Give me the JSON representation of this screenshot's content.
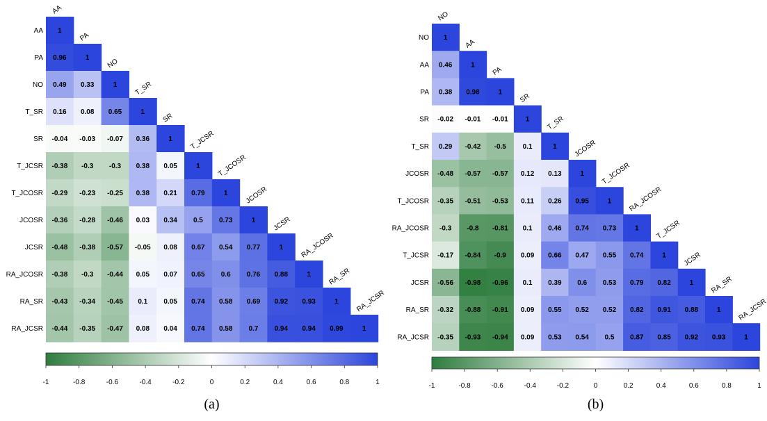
{
  "chart_data": [
    {
      "type": "heatmap",
      "caption": "(a)",
      "variables": [
        "AA",
        "PA",
        "NO",
        "T_SR",
        "SR",
        "T_JCSR",
        "T_JCOSR",
        "JCOSR",
        "JCSR",
        "RA_JCOSR",
        "RA_SR",
        "RA_JCSR"
      ],
      "lower_triangle": [
        [
          1
        ],
        [
          0.96,
          1
        ],
        [
          0.49,
          0.33,
          1
        ],
        [
          0.16,
          0.08,
          0.65,
          1
        ],
        [
          -0.04,
          -0.03,
          -0.07,
          0.36,
          1
        ],
        [
          -0.38,
          -0.3,
          -0.3,
          0.38,
          0.05,
          1
        ],
        [
          -0.29,
          -0.23,
          -0.25,
          0.38,
          0.21,
          0.79,
          1
        ],
        [
          -0.36,
          -0.28,
          -0.46,
          0.03,
          0.34,
          0.5,
          0.73,
          1
        ],
        [
          -0.48,
          -0.38,
          -0.57,
          -0.05,
          0.08,
          0.67,
          0.54,
          0.77,
          1
        ],
        [
          -0.38,
          -0.3,
          -0.44,
          0.05,
          0.07,
          0.65,
          0.6,
          0.76,
          0.88,
          1
        ],
        [
          -0.43,
          -0.34,
          -0.45,
          0.1,
          0.05,
          0.74,
          0.58,
          0.69,
          0.92,
          0.93,
          1
        ],
        [
          -0.44,
          -0.35,
          -0.47,
          0.08,
          0.04,
          0.74,
          0.58,
          0.7,
          0.94,
          0.94,
          0.99,
          1
        ]
      ],
      "colorbar": {
        "range": [
          -1,
          1
        ],
        "ticks": [
          "-1",
          "-0.8",
          "-0.6",
          "-0.4",
          "-0.2",
          "0",
          "0.2",
          "0.4",
          "0.6",
          "0.8",
          "1"
        ]
      }
    },
    {
      "type": "heatmap",
      "caption": "(b)",
      "variables": [
        "NO",
        "AA",
        "PA",
        "SR",
        "T_SR",
        "JCOSR",
        "T_JCOSR",
        "RA_JCOSR",
        "T_JCSR",
        "JCSR",
        "RA_SR",
        "RA_JCSR"
      ],
      "lower_triangle": [
        [
          1
        ],
        [
          0.46,
          1
        ],
        [
          0.38,
          0.98,
          1
        ],
        [
          -0.02,
          -0.01,
          -0.01,
          1
        ],
        [
          0.29,
          -0.42,
          -0.5,
          0.1,
          1
        ],
        [
          -0.48,
          -0.57,
          -0.57,
          0.12,
          0.13,
          1
        ],
        [
          -0.35,
          -0.51,
          -0.53,
          0.11,
          0.26,
          0.95,
          1
        ],
        [
          -0.3,
          -0.8,
          -0.81,
          0.1,
          0.46,
          0.74,
          0.73,
          1
        ],
        [
          -0.17,
          -0.84,
          -0.9,
          0.09,
          0.66,
          0.47,
          0.55,
          0.74,
          1
        ],
        [
          -0.56,
          -0.98,
          -0.96,
          0.1,
          0.39,
          0.6,
          0.53,
          0.79,
          0.82,
          1
        ],
        [
          -0.32,
          -0.88,
          -0.91,
          0.09,
          0.55,
          0.52,
          0.52,
          0.82,
          0.91,
          0.88,
          1
        ],
        [
          -0.35,
          -0.93,
          -0.94,
          0.09,
          0.53,
          0.54,
          0.5,
          0.87,
          0.85,
          0.92,
          0.93,
          1
        ]
      ],
      "colorbar": {
        "range": [
          -1,
          1
        ],
        "ticks": [
          "-1",
          "-0.8",
          "-0.6",
          "-0.4",
          "-0.2",
          "0",
          "0.2",
          "0.4",
          "0.6",
          "0.8",
          "1"
        ]
      }
    }
  ],
  "colors": {
    "negative": "#2f7d3f",
    "zero": "#ffffff",
    "positive": "#2c45dc"
  }
}
